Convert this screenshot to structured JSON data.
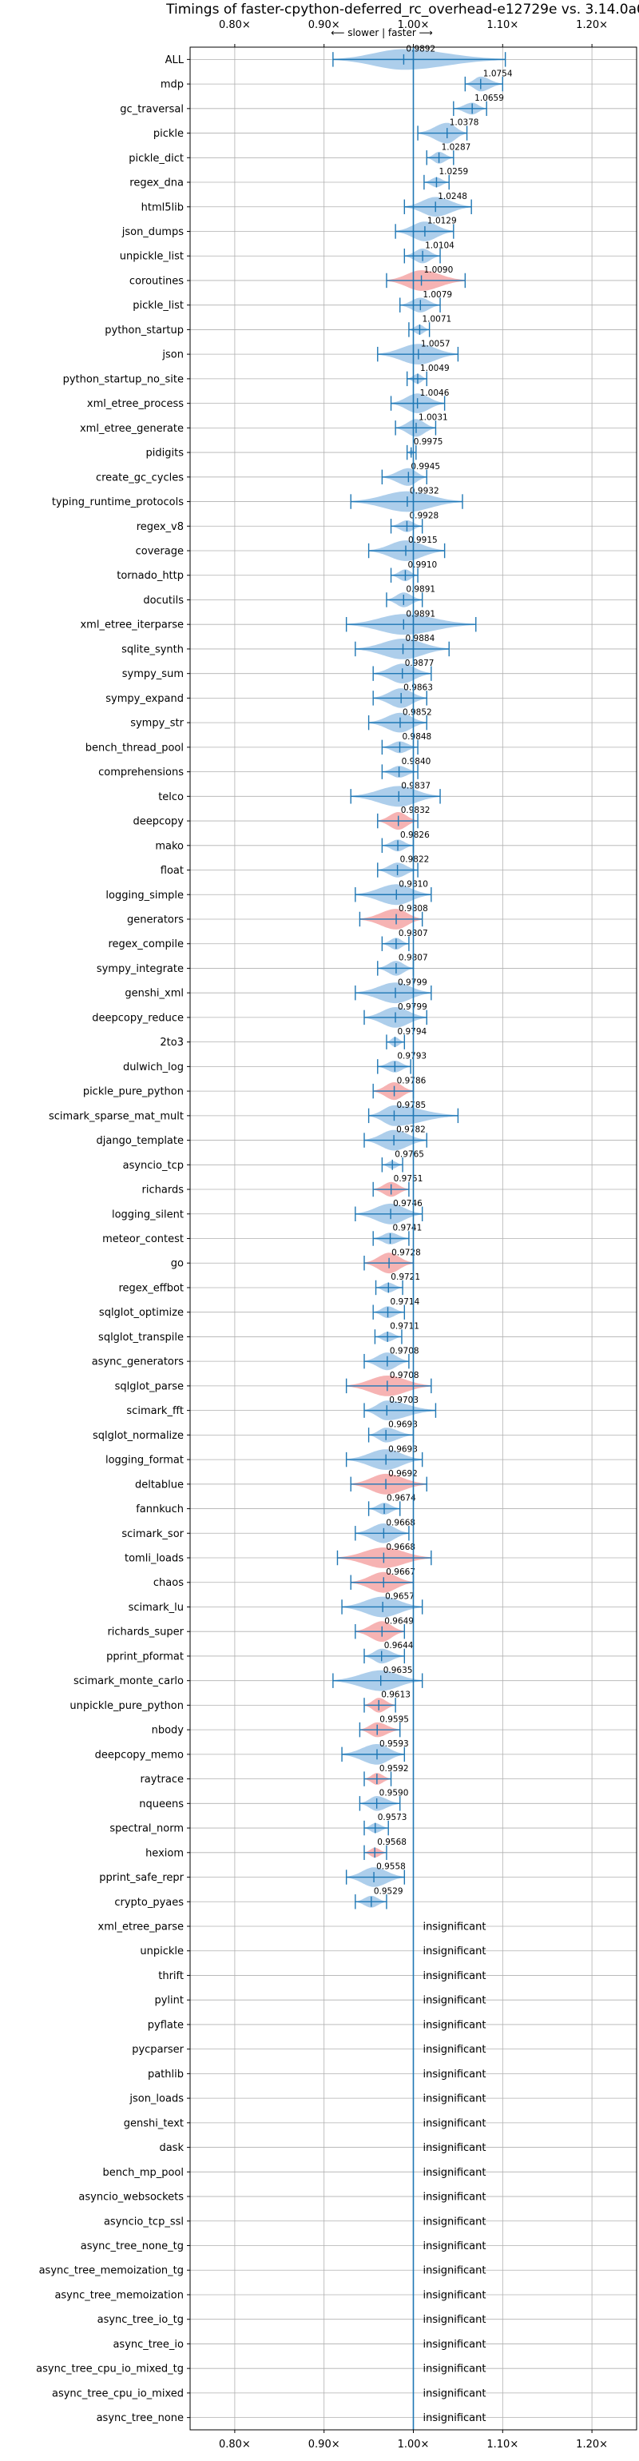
{
  "chart_data": {
    "type": "violin",
    "title": "Timings of faster-cpython-deferred_rc_overhead-e12729e vs. 3.14.0a0",
    "subtitle": "⟵ slower | faster ⟶",
    "x_ticks": [
      {
        "value": 0.8,
        "label": "0.80×"
      },
      {
        "value": 0.9,
        "label": "0.90×"
      },
      {
        "value": 1.0,
        "label": "1.00×"
      },
      {
        "value": 1.1,
        "label": "1.10×"
      },
      {
        "value": 1.2,
        "label": "1.20×"
      }
    ],
    "xlim": [
      0.75,
      1.25
    ],
    "reference_line": 1.0,
    "grid": true,
    "colors": {
      "faster": "#9fc5e8",
      "slower": "#f4a6a6",
      "line": "#1f77b4"
    },
    "insignificant_label": "insignificant",
    "benchmarks": [
      {
        "name": "ALL",
        "value": 0.9892,
        "label": "0.9892",
        "lo": 0.91,
        "hi": 1.103,
        "w": 0.035,
        "color": "faster"
      },
      {
        "name": "mdp",
        "value": 1.0754,
        "label": "1.0754",
        "lo": 1.058,
        "hi": 1.1,
        "w": 0.015,
        "color": "faster"
      },
      {
        "name": "gc_traversal",
        "value": 1.0659,
        "label": "1.0659",
        "lo": 1.045,
        "hi": 1.082,
        "w": 0.012,
        "color": "faster"
      },
      {
        "name": "pickle",
        "value": 1.0378,
        "label": "1.0378",
        "lo": 1.005,
        "hi": 1.06,
        "w": 0.022,
        "color": "faster"
      },
      {
        "name": "pickle_dict",
        "value": 1.0287,
        "label": "1.0287",
        "lo": 1.015,
        "hi": 1.045,
        "w": 0.012,
        "color": "faster"
      },
      {
        "name": "regex_dna",
        "value": 1.0259,
        "label": "1.0259",
        "lo": 1.012,
        "hi": 1.04,
        "w": 0.01,
        "color": "faster"
      },
      {
        "name": "html5lib",
        "value": 1.0248,
        "label": "1.0248",
        "lo": 0.99,
        "hi": 1.065,
        "w": 0.02,
        "color": "faster"
      },
      {
        "name": "json_dumps",
        "value": 1.0129,
        "label": "1.0129",
        "lo": 0.98,
        "hi": 1.045,
        "w": 0.02,
        "color": "faster"
      },
      {
        "name": "unpickle_list",
        "value": 1.0104,
        "label": "1.0104",
        "lo": 0.99,
        "hi": 1.03,
        "w": 0.015,
        "color": "faster"
      },
      {
        "name": "coroutines",
        "value": 1.009,
        "label": "1.0090",
        "lo": 0.97,
        "hi": 1.058,
        "w": 0.025,
        "color": "slower"
      },
      {
        "name": "pickle_list",
        "value": 1.0079,
        "label": "1.0079",
        "lo": 0.985,
        "hi": 1.03,
        "w": 0.015,
        "color": "faster"
      },
      {
        "name": "python_startup",
        "value": 1.0071,
        "label": "1.0071",
        "lo": 0.995,
        "hi": 1.018,
        "w": 0.01,
        "color": "faster"
      },
      {
        "name": "json",
        "value": 1.0057,
        "label": "1.0057",
        "lo": 0.96,
        "hi": 1.05,
        "w": 0.025,
        "color": "faster"
      },
      {
        "name": "python_startup_no_site",
        "value": 1.0049,
        "label": "1.0049",
        "lo": 0.993,
        "hi": 1.015,
        "w": 0.01,
        "color": "faster"
      },
      {
        "name": "xml_etree_process",
        "value": 1.0046,
        "label": "1.0046",
        "lo": 0.975,
        "hi": 1.035,
        "w": 0.02,
        "color": "faster"
      },
      {
        "name": "xml_etree_generate",
        "value": 1.0031,
        "label": "1.0031",
        "lo": 0.98,
        "hi": 1.025,
        "w": 0.018,
        "color": "faster"
      },
      {
        "name": "pidigits",
        "value": 0.9975,
        "label": "0.9975",
        "lo": 0.993,
        "hi": 1.003,
        "w": 0.005,
        "color": "faster"
      },
      {
        "name": "create_gc_cycles",
        "value": 0.9945,
        "label": "0.9945",
        "lo": 0.965,
        "hi": 1.015,
        "w": 0.018,
        "color": "faster"
      },
      {
        "name": "typing_runtime_protocols",
        "value": 0.9932,
        "label": "0.9932",
        "lo": 0.93,
        "hi": 1.055,
        "w": 0.03,
        "color": "faster"
      },
      {
        "name": "regex_v8",
        "value": 0.9928,
        "label": "0.9928",
        "lo": 0.975,
        "hi": 1.01,
        "w": 0.012,
        "color": "faster"
      },
      {
        "name": "coverage",
        "value": 0.9915,
        "label": "0.9915",
        "lo": 0.95,
        "hi": 1.035,
        "w": 0.022,
        "color": "faster"
      },
      {
        "name": "tornado_http",
        "value": 0.991,
        "label": "0.9910",
        "lo": 0.975,
        "hi": 1.005,
        "w": 0.012,
        "color": "faster"
      },
      {
        "name": "docutils",
        "value": 0.9891,
        "label": "0.9891",
        "lo": 0.97,
        "hi": 1.01,
        "w": 0.015,
        "color": "faster"
      },
      {
        "name": "xml_etree_iterparse",
        "value": 0.9891,
        "label": "0.9891",
        "lo": 0.925,
        "hi": 1.07,
        "w": 0.04,
        "color": "faster"
      },
      {
        "name": "sqlite_synth",
        "value": 0.9884,
        "label": "0.9884",
        "lo": 0.935,
        "hi": 1.04,
        "w": 0.03,
        "color": "faster"
      },
      {
        "name": "sympy_sum",
        "value": 0.9877,
        "label": "0.9877",
        "lo": 0.955,
        "hi": 1.02,
        "w": 0.02,
        "color": "faster"
      },
      {
        "name": "sympy_expand",
        "value": 0.9863,
        "label": "0.9863",
        "lo": 0.955,
        "hi": 1.015,
        "w": 0.02,
        "color": "faster"
      },
      {
        "name": "sympy_str",
        "value": 0.9852,
        "label": "0.9852",
        "lo": 0.95,
        "hi": 1.015,
        "w": 0.02,
        "color": "faster"
      },
      {
        "name": "bench_thread_pool",
        "value": 0.9848,
        "label": "0.9848",
        "lo": 0.965,
        "hi": 1.005,
        "w": 0.012,
        "color": "faster"
      },
      {
        "name": "comprehensions",
        "value": 0.984,
        "label": "0.9840",
        "lo": 0.965,
        "hi": 1.005,
        "w": 0.012,
        "color": "faster"
      },
      {
        "name": "telco",
        "value": 0.9837,
        "label": "0.9837",
        "lo": 0.93,
        "hi": 1.03,
        "w": 0.025,
        "color": "faster"
      },
      {
        "name": "deepcopy",
        "value": 0.9832,
        "label": "0.9832",
        "lo": 0.96,
        "hi": 1.005,
        "w": 0.018,
        "color": "slower"
      },
      {
        "name": "mako",
        "value": 0.9826,
        "label": "0.9826",
        "lo": 0.965,
        "hi": 1.0,
        "w": 0.012,
        "color": "faster"
      },
      {
        "name": "float",
        "value": 0.9822,
        "label": "0.9822",
        "lo": 0.96,
        "hi": 1.005,
        "w": 0.015,
        "color": "faster"
      },
      {
        "name": "logging_simple",
        "value": 0.981,
        "label": "0.9810",
        "lo": 0.935,
        "hi": 1.02,
        "w": 0.025,
        "color": "faster"
      },
      {
        "name": "generators",
        "value": 0.9808,
        "label": "0.9808",
        "lo": 0.94,
        "hi": 1.01,
        "w": 0.025,
        "color": "slower"
      },
      {
        "name": "regex_compile",
        "value": 0.9807,
        "label": "0.9807",
        "lo": 0.965,
        "hi": 0.995,
        "w": 0.012,
        "color": "faster"
      },
      {
        "name": "sympy_integrate",
        "value": 0.9807,
        "label": "0.9807",
        "lo": 0.96,
        "hi": 1.0,
        "w": 0.015,
        "color": "faster"
      },
      {
        "name": "genshi_xml",
        "value": 0.9799,
        "label": "0.9799",
        "lo": 0.935,
        "hi": 1.02,
        "w": 0.025,
        "color": "faster"
      },
      {
        "name": "deepcopy_reduce",
        "value": 0.9799,
        "label": "0.9799",
        "lo": 0.945,
        "hi": 1.015,
        "w": 0.022,
        "color": "faster"
      },
      {
        "name": "2to3",
        "value": 0.9794,
        "label": "0.9794",
        "lo": 0.97,
        "hi": 0.99,
        "w": 0.01,
        "color": "faster"
      },
      {
        "name": "dulwich_log",
        "value": 0.9793,
        "label": "0.9793",
        "lo": 0.96,
        "hi": 0.997,
        "w": 0.012,
        "color": "faster"
      },
      {
        "name": "pickle_pure_python",
        "value": 0.9786,
        "label": "0.9786",
        "lo": 0.955,
        "hi": 1.0,
        "w": 0.018,
        "color": "slower"
      },
      {
        "name": "scimark_sparse_mat_mult",
        "value": 0.9785,
        "label": "0.9785",
        "lo": 0.95,
        "hi": 1.05,
        "w": 0.025,
        "color": "faster"
      },
      {
        "name": "django_template",
        "value": 0.9782,
        "label": "0.9782",
        "lo": 0.945,
        "hi": 1.015,
        "w": 0.022,
        "color": "faster"
      },
      {
        "name": "asyncio_tcp",
        "value": 0.9765,
        "label": "0.9765",
        "lo": 0.965,
        "hi": 0.988,
        "w": 0.008,
        "color": "faster"
      },
      {
        "name": "richards",
        "value": 0.9751,
        "label": "0.9751",
        "lo": 0.955,
        "hi": 0.995,
        "w": 0.015,
        "color": "slower"
      },
      {
        "name": "logging_silent",
        "value": 0.9746,
        "label": "0.9746",
        "lo": 0.935,
        "hi": 1.01,
        "w": 0.022,
        "color": "faster"
      },
      {
        "name": "meteor_contest",
        "value": 0.9741,
        "label": "0.9741",
        "lo": 0.955,
        "hi": 0.995,
        "w": 0.012,
        "color": "faster"
      },
      {
        "name": "go",
        "value": 0.9728,
        "label": "0.9728",
        "lo": 0.945,
        "hi": 1.0,
        "w": 0.022,
        "color": "slower"
      },
      {
        "name": "regex_effbot",
        "value": 0.9721,
        "label": "0.9721",
        "lo": 0.958,
        "hi": 0.988,
        "w": 0.01,
        "color": "faster"
      },
      {
        "name": "sqlglot_optimize",
        "value": 0.9714,
        "label": "0.9714",
        "lo": 0.955,
        "hi": 0.99,
        "w": 0.012,
        "color": "faster"
      },
      {
        "name": "sqlglot_transpile",
        "value": 0.9711,
        "label": "0.9711",
        "lo": 0.957,
        "hi": 0.987,
        "w": 0.01,
        "color": "faster"
      },
      {
        "name": "async_generators",
        "value": 0.9708,
        "label": "0.9708",
        "lo": 0.945,
        "hi": 0.995,
        "w": 0.018,
        "color": "faster"
      },
      {
        "name": "sqlglot_parse",
        "value": 0.9708,
        "label": "0.9708",
        "lo": 0.925,
        "hi": 1.02,
        "w": 0.03,
        "color": "slower"
      },
      {
        "name": "scimark_fft",
        "value": 0.9703,
        "label": "0.9703",
        "lo": 0.945,
        "hi": 1.025,
        "w": 0.02,
        "color": "faster"
      },
      {
        "name": "sqlglot_normalize",
        "value": 0.9693,
        "label": "0.9693",
        "lo": 0.95,
        "hi": 1.0,
        "w": 0.015,
        "color": "faster"
      },
      {
        "name": "logging_format",
        "value": 0.9693,
        "label": "0.9693",
        "lo": 0.925,
        "hi": 1.01,
        "w": 0.03,
        "color": "faster"
      },
      {
        "name": "deltablue",
        "value": 0.9692,
        "label": "0.9692",
        "lo": 0.93,
        "hi": 1.015,
        "w": 0.035,
        "color": "slower"
      },
      {
        "name": "fannkuch",
        "value": 0.9674,
        "label": "0.9674",
        "lo": 0.95,
        "hi": 0.985,
        "w": 0.012,
        "color": "faster"
      },
      {
        "name": "scimark_sor",
        "value": 0.9668,
        "label": "0.9668",
        "lo": 0.935,
        "hi": 0.995,
        "w": 0.02,
        "color": "faster"
      },
      {
        "name": "tomli_loads",
        "value": 0.9668,
        "label": "0.9668",
        "lo": 0.915,
        "hi": 1.02,
        "w": 0.04,
        "color": "slower"
      },
      {
        "name": "chaos",
        "value": 0.9667,
        "label": "0.9667",
        "lo": 0.93,
        "hi": 1.0,
        "w": 0.03,
        "color": "slower"
      },
      {
        "name": "scimark_lu",
        "value": 0.9657,
        "label": "0.9657",
        "lo": 0.92,
        "hi": 1.01,
        "w": 0.025,
        "color": "faster"
      },
      {
        "name": "richards_super",
        "value": 0.9649,
        "label": "0.9649",
        "lo": 0.935,
        "hi": 0.99,
        "w": 0.025,
        "color": "slower"
      },
      {
        "name": "pprint_pformat",
        "value": 0.9644,
        "label": "0.9644",
        "lo": 0.945,
        "hi": 0.99,
        "w": 0.015,
        "color": "faster"
      },
      {
        "name": "scimark_monte_carlo",
        "value": 0.9635,
        "label": "0.9635",
        "lo": 0.91,
        "hi": 1.01,
        "w": 0.03,
        "color": "faster"
      },
      {
        "name": "unpickle_pure_python",
        "value": 0.9613,
        "label": "0.9613",
        "lo": 0.945,
        "hi": 0.98,
        "w": 0.015,
        "color": "slower"
      },
      {
        "name": "nbody",
        "value": 0.9595,
        "label": "0.9595",
        "lo": 0.94,
        "hi": 0.985,
        "w": 0.015,
        "color": "slower"
      },
      {
        "name": "deepcopy_memo",
        "value": 0.9593,
        "label": "0.9593",
        "lo": 0.92,
        "hi": 0.99,
        "w": 0.025,
        "color": "faster"
      },
      {
        "name": "raytrace",
        "value": 0.9592,
        "label": "0.9592",
        "lo": 0.945,
        "hi": 0.975,
        "w": 0.012,
        "color": "slower"
      },
      {
        "name": "nqueens",
        "value": 0.959,
        "label": "0.9590",
        "lo": 0.94,
        "hi": 0.985,
        "w": 0.015,
        "color": "faster"
      },
      {
        "name": "spectral_norm",
        "value": 0.9573,
        "label": "0.9573",
        "lo": 0.945,
        "hi": 0.972,
        "w": 0.01,
        "color": "faster"
      },
      {
        "name": "hexiom",
        "value": 0.9568,
        "label": "0.9568",
        "lo": 0.945,
        "hi": 0.97,
        "w": 0.01,
        "color": "slower"
      },
      {
        "name": "pprint_safe_repr",
        "value": 0.9558,
        "label": "0.9558",
        "lo": 0.925,
        "hi": 0.99,
        "w": 0.02,
        "color": "faster"
      },
      {
        "name": "crypto_pyaes",
        "value": 0.9529,
        "label": "0.9529",
        "lo": 0.935,
        "hi": 0.97,
        "w": 0.012,
        "color": "faster"
      },
      {
        "name": "xml_etree_parse",
        "insignificant": true
      },
      {
        "name": "unpickle",
        "insignificant": true
      },
      {
        "name": "thrift",
        "insignificant": true
      },
      {
        "name": "pylint",
        "insignificant": true
      },
      {
        "name": "pyflate",
        "insignificant": true
      },
      {
        "name": "pycparser",
        "insignificant": true
      },
      {
        "name": "pathlib",
        "insignificant": true
      },
      {
        "name": "json_loads",
        "insignificant": true
      },
      {
        "name": "genshi_text",
        "insignificant": true
      },
      {
        "name": "dask",
        "insignificant": true
      },
      {
        "name": "bench_mp_pool",
        "insignificant": true
      },
      {
        "name": "asyncio_websockets",
        "insignificant": true
      },
      {
        "name": "asyncio_tcp_ssl",
        "insignificant": true
      },
      {
        "name": "async_tree_none_tg",
        "insignificant": true
      },
      {
        "name": "async_tree_memoization_tg",
        "insignificant": true
      },
      {
        "name": "async_tree_memoization",
        "insignificant": true
      },
      {
        "name": "async_tree_io_tg",
        "insignificant": true
      },
      {
        "name": "async_tree_io",
        "insignificant": true
      },
      {
        "name": "async_tree_cpu_io_mixed_tg",
        "insignificant": true
      },
      {
        "name": "async_tree_cpu_io_mixed",
        "insignificant": true
      },
      {
        "name": "async_tree_none",
        "insignificant": true
      }
    ]
  }
}
